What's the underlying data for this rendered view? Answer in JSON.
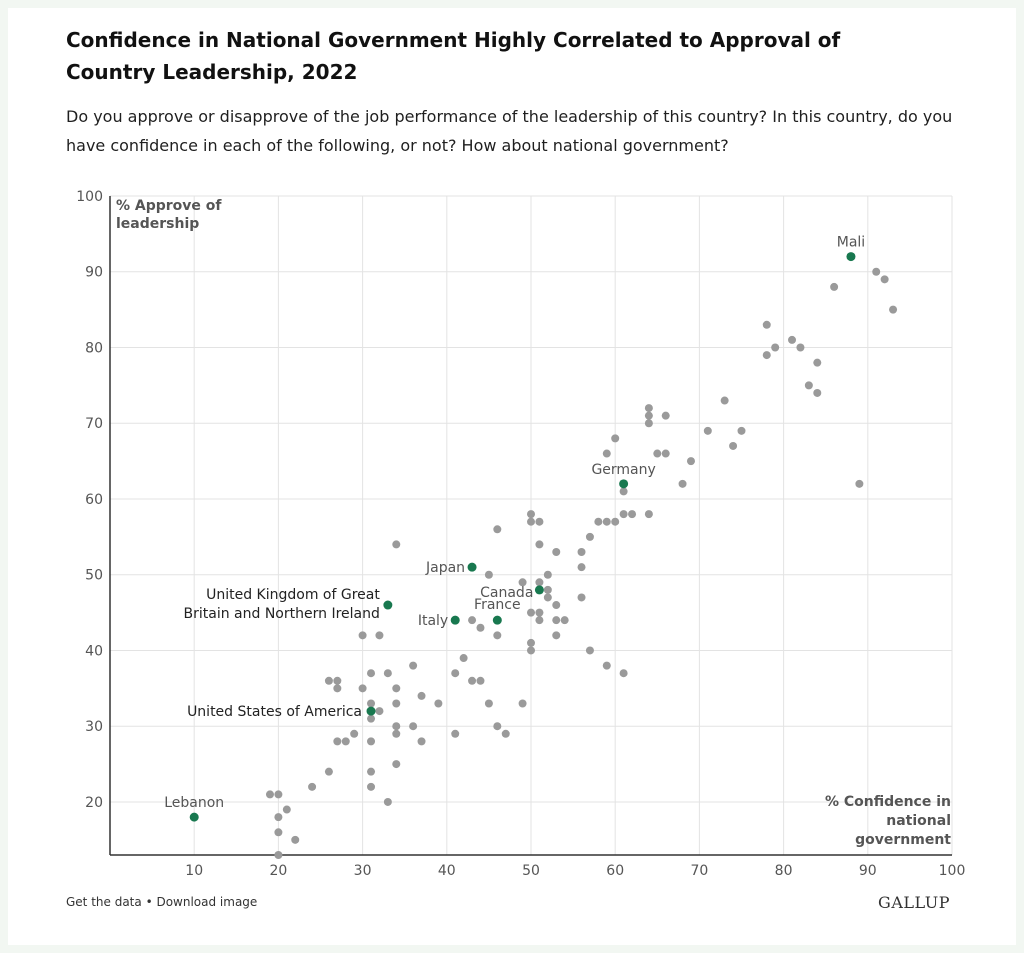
{
  "chart_data": {
    "type": "scatter",
    "title": "Confidence in National Government Highly Correlated to Approval of Country Leadership, 2022",
    "subtitle": "Do you approve or disapprove of the job performance of the leadership of this country? In this country, do you have confidence in each of the following, or not? How about national government?",
    "xlabel": "% Confidence in national government",
    "ylabel": "% Approve of leadership",
    "xlim": [
      0,
      100
    ],
    "ylim": [
      13,
      100
    ],
    "xticks": [
      10,
      20,
      30,
      40,
      50,
      60,
      70,
      80,
      90,
      100
    ],
    "yticks": [
      20,
      30,
      40,
      50,
      60,
      70,
      80,
      90,
      100
    ],
    "grid": true,
    "colors": {
      "points": "#9a9a9a",
      "highlight": "#18784f",
      "grid": "#e3e3e3",
      "axis": "#333333"
    },
    "highlighted": [
      {
        "label": "Mali",
        "x": 88,
        "y": 92
      },
      {
        "label": "Germany",
        "x": 61,
        "y": 62
      },
      {
        "label": "Japan",
        "x": 43,
        "y": 51
      },
      {
        "label": "Canada",
        "x": 51,
        "y": 48
      },
      {
        "label": "France",
        "x": 46,
        "y": 44
      },
      {
        "label": "Italy",
        "x": 41,
        "y": 44
      },
      {
        "label": "United Kingdom of Great Britain and Northern Ireland",
        "x": 33,
        "y": 46
      },
      {
        "label": "United States of America",
        "x": 31,
        "y": 32
      },
      {
        "label": "Lebanon",
        "x": 10,
        "y": 18
      }
    ],
    "points": [
      [
        91,
        90
      ],
      [
        92,
        89
      ],
      [
        86,
        88
      ],
      [
        93,
        85
      ],
      [
        78,
        83
      ],
      [
        81,
        81
      ],
      [
        79,
        80
      ],
      [
        82,
        80
      ],
      [
        78,
        79
      ],
      [
        84,
        78
      ],
      [
        83,
        75
      ],
      [
        84,
        74
      ],
      [
        73,
        73
      ],
      [
        64,
        72
      ],
      [
        64,
        71
      ],
      [
        66,
        71
      ],
      [
        64,
        70
      ],
      [
        71,
        69
      ],
      [
        75,
        69
      ],
      [
        60,
        68
      ],
      [
        74,
        67
      ],
      [
        59,
        66
      ],
      [
        65,
        66
      ],
      [
        66,
        66
      ],
      [
        69,
        65
      ],
      [
        68,
        62
      ],
      [
        89,
        62
      ],
      [
        61,
        61
      ],
      [
        62,
        58
      ],
      [
        61,
        58
      ],
      [
        64,
        58
      ],
      [
        50,
        58
      ],
      [
        50,
        57
      ],
      [
        51,
        57
      ],
      [
        58,
        57
      ],
      [
        59,
        57
      ],
      [
        60,
        57
      ],
      [
        46,
        56
      ],
      [
        57,
        55
      ],
      [
        34,
        54
      ],
      [
        51,
        54
      ],
      [
        53,
        53
      ],
      [
        56,
        53
      ],
      [
        56,
        51
      ],
      [
        45,
        50
      ],
      [
        52,
        50
      ],
      [
        49,
        49
      ],
      [
        51,
        49
      ],
      [
        52,
        48
      ],
      [
        52,
        47
      ],
      [
        56,
        47
      ],
      [
        53,
        46
      ],
      [
        50,
        45
      ],
      [
        51,
        45
      ],
      [
        43,
        44
      ],
      [
        51,
        44
      ],
      [
        53,
        44
      ],
      [
        54,
        44
      ],
      [
        44,
        43
      ],
      [
        30,
        42
      ],
      [
        32,
        42
      ],
      [
        46,
        42
      ],
      [
        53,
        42
      ],
      [
        50,
        41
      ],
      [
        50,
        40
      ],
      [
        57,
        40
      ],
      [
        42,
        39
      ],
      [
        36,
        38
      ],
      [
        59,
        38
      ],
      [
        31,
        37
      ],
      [
        33,
        37
      ],
      [
        41,
        37
      ],
      [
        61,
        37
      ],
      [
        26,
        36
      ],
      [
        27,
        36
      ],
      [
        43,
        36
      ],
      [
        44,
        36
      ],
      [
        27,
        35
      ],
      [
        30,
        35
      ],
      [
        34,
        35
      ],
      [
        37,
        34
      ],
      [
        31,
        33
      ],
      [
        34,
        33
      ],
      [
        39,
        33
      ],
      [
        45,
        33
      ],
      [
        49,
        33
      ],
      [
        32,
        32
      ],
      [
        31,
        31
      ],
      [
        34,
        30
      ],
      [
        36,
        30
      ],
      [
        46,
        30
      ],
      [
        29,
        29
      ],
      [
        34,
        29
      ],
      [
        41,
        29
      ],
      [
        47,
        29
      ],
      [
        27,
        28
      ],
      [
        28,
        28
      ],
      [
        31,
        28
      ],
      [
        37,
        28
      ],
      [
        34,
        25
      ],
      [
        26,
        24
      ],
      [
        31,
        24
      ],
      [
        24,
        22
      ],
      [
        31,
        22
      ],
      [
        19,
        21
      ],
      [
        20,
        21
      ],
      [
        33,
        20
      ],
      [
        21,
        19
      ],
      [
        20,
        18
      ],
      [
        20,
        16
      ],
      [
        22,
        15
      ],
      [
        20,
        13
      ]
    ]
  },
  "footer": {
    "get_data": "Get the data",
    "separator": " • ",
    "download": "Download image",
    "logo": "GALLUP"
  }
}
